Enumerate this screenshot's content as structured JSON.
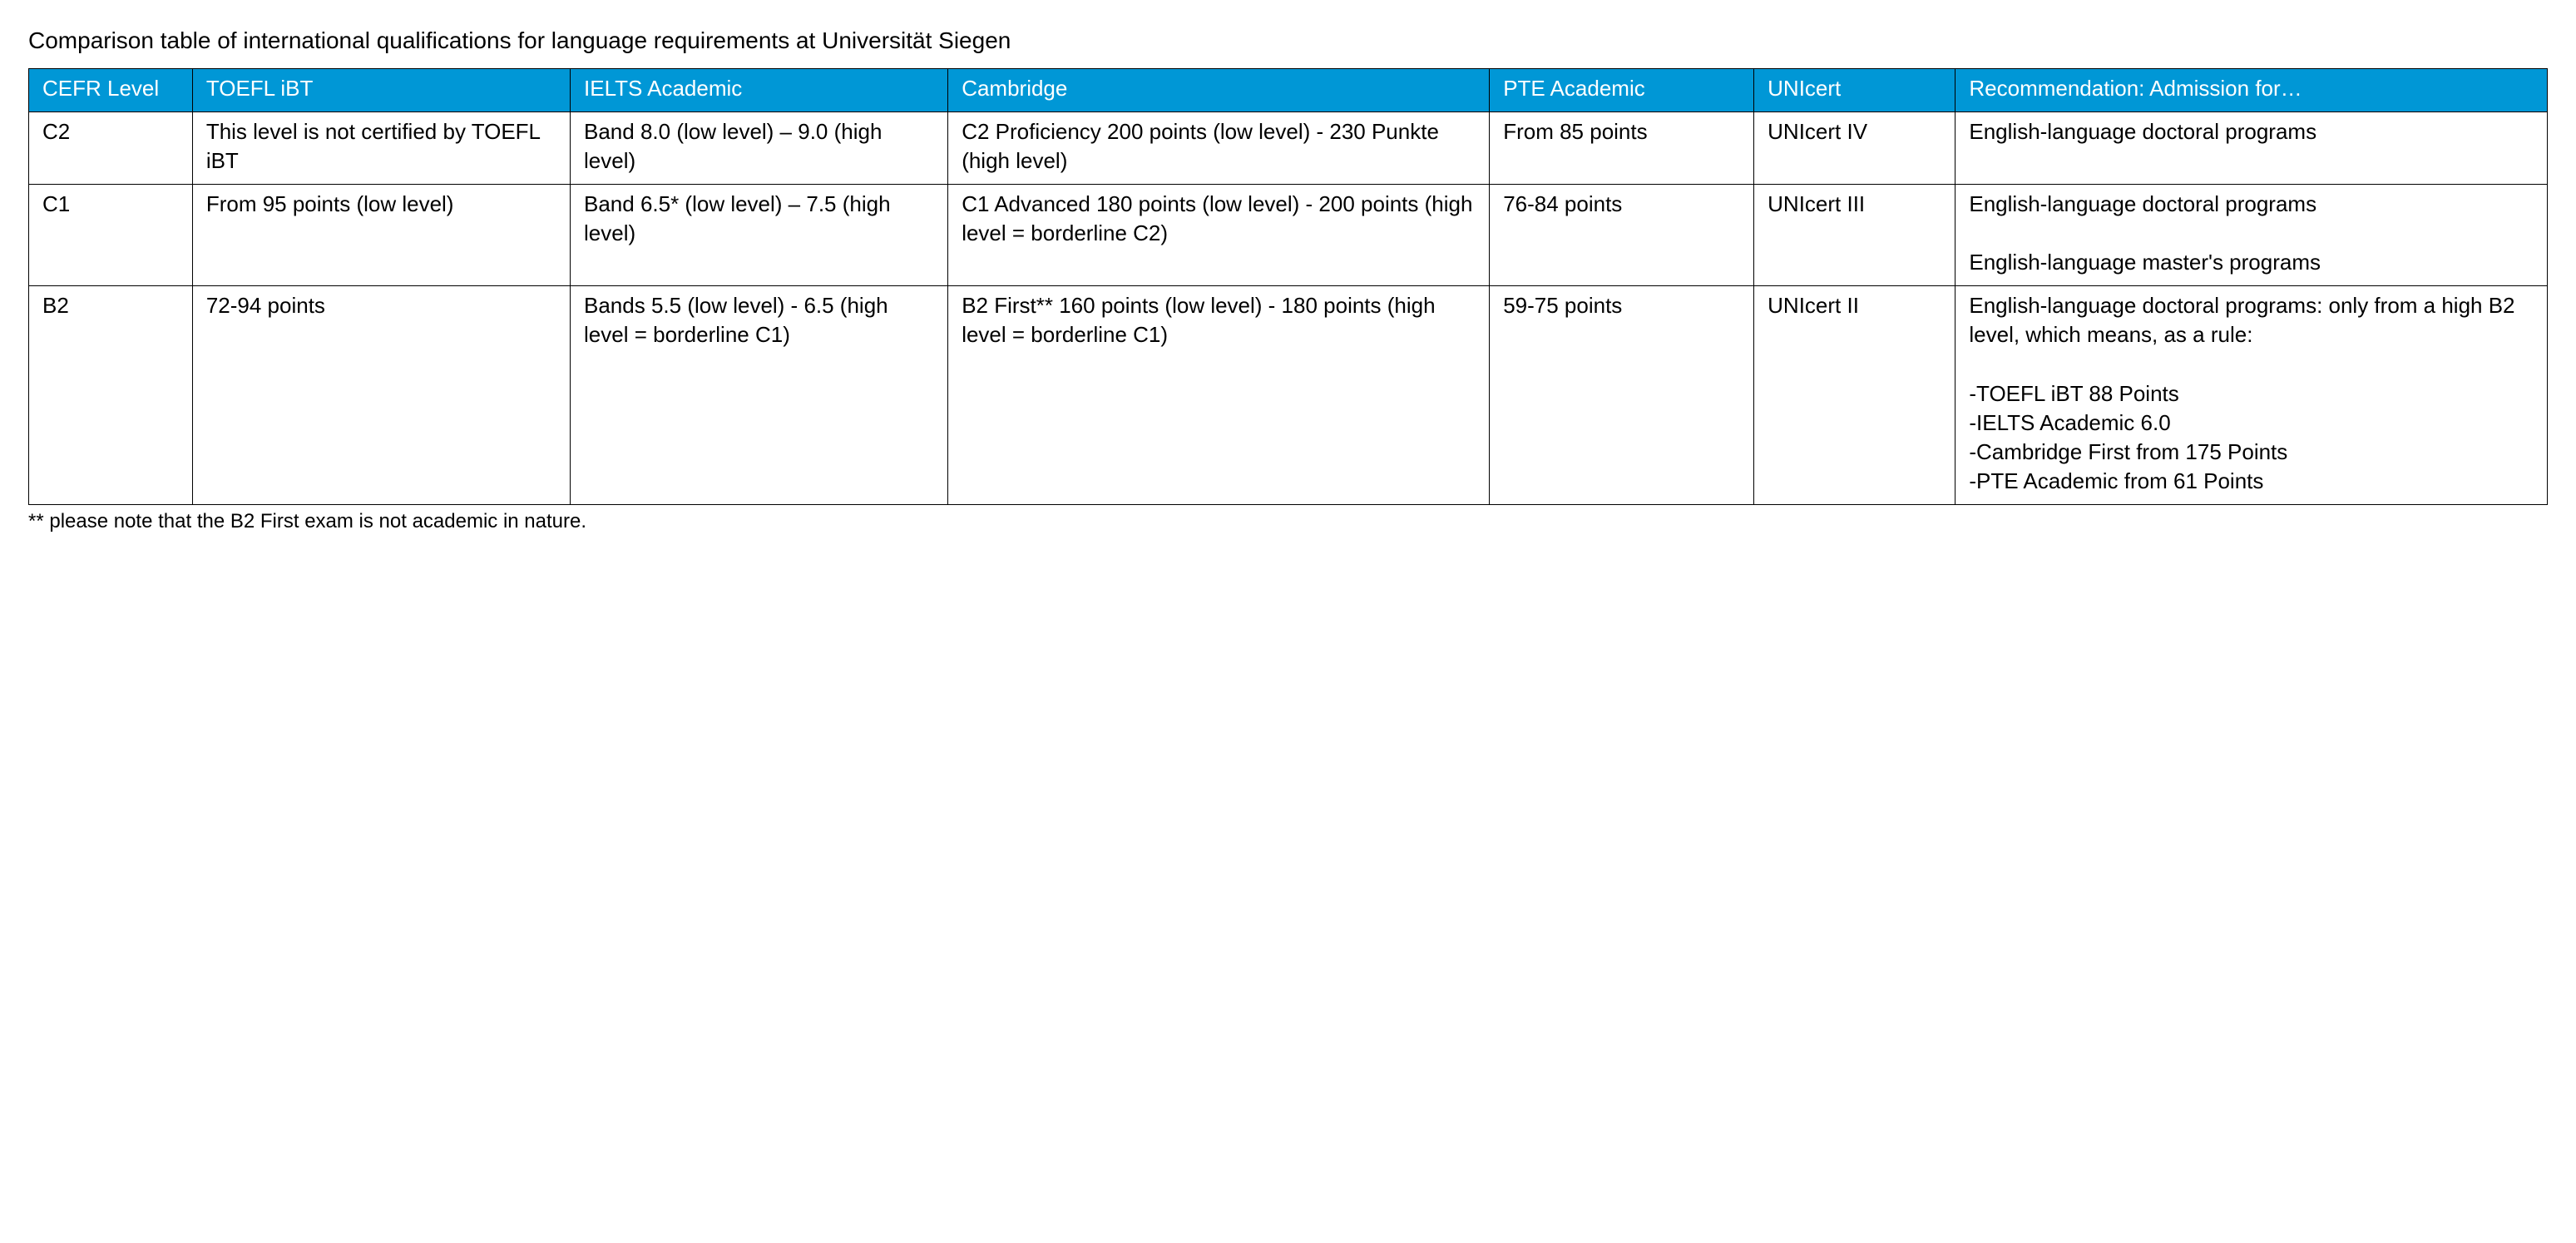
{
  "title": "Comparison table of international qualifications for language requirements at Universität Siegen",
  "footnote": "** please note that the B2 First exam is not academic in nature.",
  "table": {
    "header_bg": "#0097d6",
    "header_fg": "#ffffff",
    "border_color": "#000000",
    "col_widths_pct": [
      6.5,
      15.0,
      15.0,
      21.5,
      10.5,
      8.0,
      23.5
    ],
    "columns": [
      "CEFR Level",
      "TOEFL iBT",
      "IELTS Academic",
      "Cambridge",
      "PTE Academic",
      "UNIcert",
      "Recommendation: Admission for…"
    ],
    "rows": [
      {
        "cefr": "C2",
        "toefl": "This level is not certified by TOEFL iBT",
        "ielts": "Band 8.0 (low level) – 9.0 (high level)",
        "cambridge": "C2 Proficiency 200 points (low level) - 230 Punkte (high level)",
        "pte": "From 85 points",
        "unicert": "UNIcert IV",
        "recommendation": "English-language doctoral programs"
      },
      {
        "cefr": "C1",
        "toefl": "From 95 points (low level)",
        "ielts": "Band 6.5* (low level) – 7.5 (high level)",
        "cambridge": "C1 Advanced 180 points (low level) - 200 points (high level = borderline C2)",
        "pte": "76-84 points",
        "unicert": "UNIcert III",
        "recommendation": "English-language doctoral programs\n\nEnglish-language master's programs\n "
      },
      {
        "cefr": "B2",
        "toefl": "72-94 points",
        "ielts": "Bands 5.5 (low level) - 6.5 (high level = borderline C1)",
        "cambridge": "B2 First** 160 points (low level) - 180 points (high level = borderline C1)",
        "pte": "59-75 points",
        "unicert": "UNIcert II",
        "recommendation": "English-language doctoral programs: only from a high B2 level, which means, as a rule:\n\n-TOEFL iBT 88 Points\n-IELTS Academic 6.0\n-Cambridge First from 175 Points\n-PTE Academic from 61 Points"
      }
    ]
  }
}
